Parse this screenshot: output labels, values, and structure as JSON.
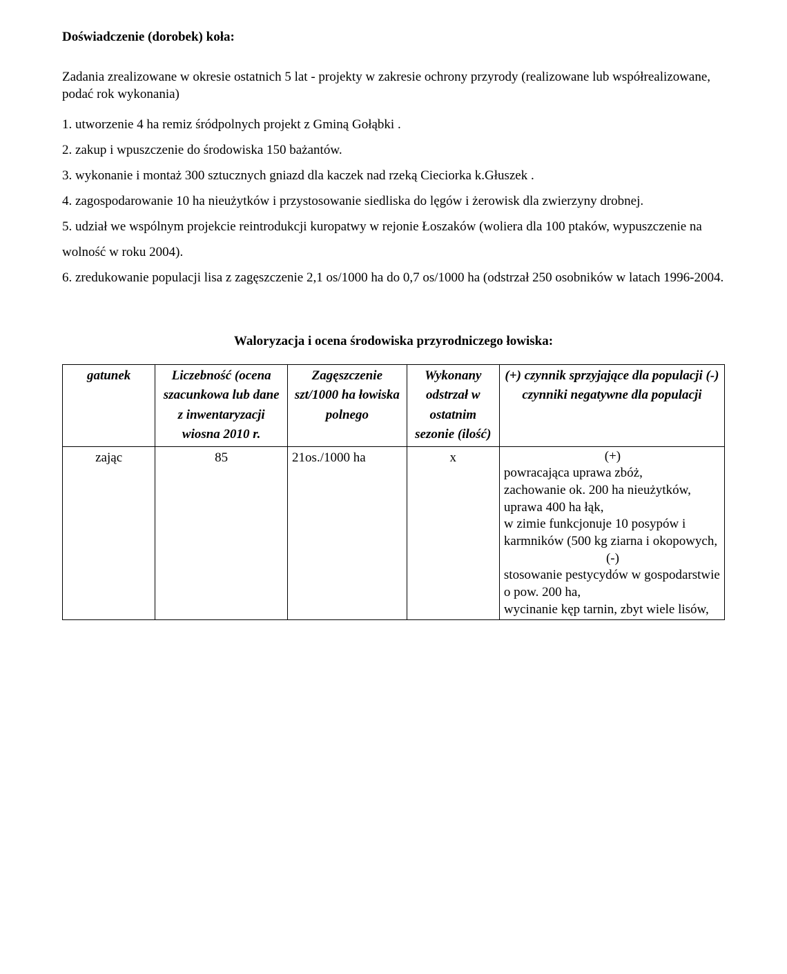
{
  "heading": "Doświadczenie (dorobek) koła:",
  "subheading": "Zadania zrealizowane w okresie ostatnich 5 lat - projekty w zakresie ochrony przyrody (realizowane lub współrealizowane, podać rok wykonania)",
  "items": [
    "1. utworzenie 4 ha remiz śródpolnych projekt z Gminą Gołąbki .",
    "2. zakup i wpuszczenie do środowiska 150 bażantów.",
    "3. wykonanie i montaż 300 sztucznych gniazd dla kaczek nad rzeką Cieciorka k.Głuszek .",
    "4. zagospodarowanie 10 ha nieużytków i przystosowanie siedliska do lęgów i żerowisk dla zwierzyny drobnej.",
    "5. udział we wspólnym projekcie reintrodukcji kuropatwy w rejonie Łoszaków (woliera dla 100 ptaków, wypuszczenie na wolność w roku 2004).",
    "6. zredukowanie populacji lisa z zagęszczenie 2,1 os/1000 ha do 0,7 os/1000 ha (odstrzał 250 osobników w latach 1996-2004."
  ],
  "table_title": "Waloryzacja i ocena środowiska przyrodniczego łowiska:",
  "columns": {
    "gatunek": "gatunek",
    "liczebnosc": "Liczebność (ocena szacunkowa lub dane z inwentaryzacji wiosna 2010 r.",
    "zageszczenie": "Zagęszczenie szt/1000 ha łowiska polnego",
    "wykonany": "Wykonany odstrzał w ostatnim sezonie (ilość)",
    "czynnik": "(+) czynnik sprzyjające dla populacji\n(-)\nczynniki negatywne dla populacji"
  },
  "row": {
    "gatunek": "zając",
    "liczebnosc": "85",
    "zageszczenie": "21os./1000 ha",
    "wykonany": "x",
    "czynnik_lines": [
      {
        "text": "(+)",
        "align": "center"
      },
      {
        "text": " powracająca uprawa zbóż,",
        "align": "left"
      },
      {
        "text": "zachowanie ok. 200 ha nieużytków,",
        "align": "left"
      },
      {
        "text": "uprawa 400 ha łąk,",
        "align": "left"
      },
      {
        "text": "w zimie funkcjonuje 10 posypów i karmników (500 kg ziarna i okopowych,",
        "align": "left"
      },
      {
        "text": "(-)",
        "align": "center"
      },
      {
        "text": "stosowanie pestycydów w gospodarstwie o pow. 200 ha,",
        "align": "left"
      },
      {
        "text": "wycinanie kęp tarnin, zbyt wiele lisów,",
        "align": "left"
      }
    ]
  }
}
